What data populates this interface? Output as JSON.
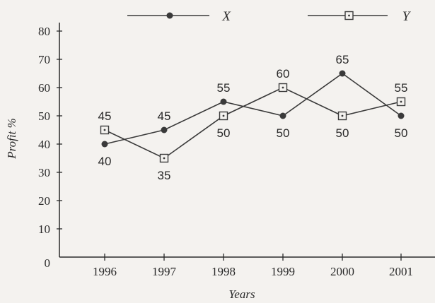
{
  "chart_data": {
    "type": "line",
    "categories": [
      "1996",
      "1997",
      "1998",
      "1999",
      "2000",
      "2001"
    ],
    "series": [
      {
        "name": "X",
        "marker": "circle",
        "values": [
          40,
          45,
          55,
          50,
          65,
          50
        ]
      },
      {
        "name": "Y",
        "marker": "square",
        "values": [
          45,
          35,
          50,
          60,
          50,
          55
        ]
      }
    ],
    "xlabel": "Years",
    "ylabel": "Profit %",
    "ylim": [
      0,
      80
    ],
    "yticks": [
      0,
      10,
      20,
      30,
      40,
      50,
      60,
      70,
      80
    ],
    "legend": "top",
    "grid": false,
    "colors": {
      "line": "#3a3a3a",
      "axis": "#2a2a2a"
    }
  }
}
